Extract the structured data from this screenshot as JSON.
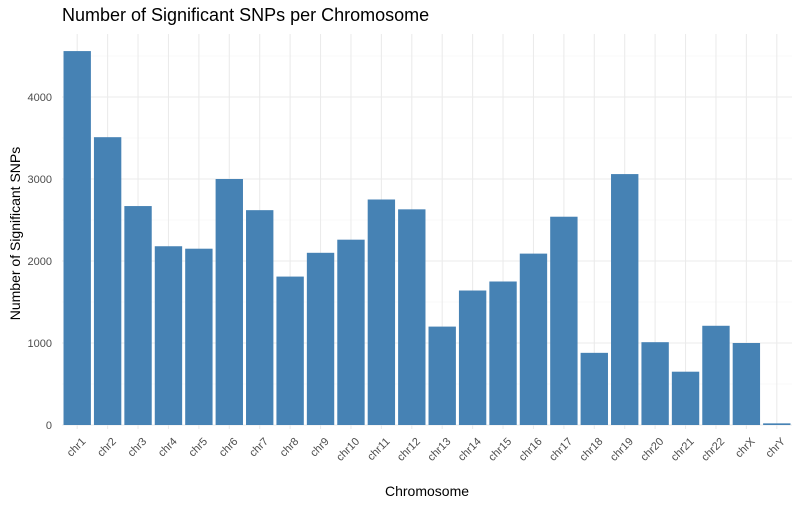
{
  "chart_data": {
    "type": "bar",
    "title": "Number of Significant SNPs per Chromosome",
    "xlabel": "Chromosome",
    "ylabel": "Number of Significant SNPs",
    "categories": [
      "chr1",
      "chr2",
      "chr3",
      "chr4",
      "chr5",
      "chr6",
      "chr7",
      "chr8",
      "chr9",
      "chr10",
      "chr11",
      "chr12",
      "chr13",
      "chr14",
      "chr15",
      "chr16",
      "chr17",
      "chr18",
      "chr19",
      "chr20",
      "chr21",
      "chr22",
      "chrX",
      "chrY"
    ],
    "values": [
      4560,
      3510,
      2670,
      2180,
      2150,
      3000,
      2620,
      1810,
      2100,
      2260,
      2750,
      2630,
      1200,
      1640,
      1750,
      2090,
      2540,
      880,
      3060,
      1010,
      650,
      1210,
      1000,
      20
    ],
    "yticks": [
      0,
      1000,
      2000,
      3000,
      4000
    ],
    "ylim": [
      0,
      4800
    ],
    "grid": true,
    "legend": "none",
    "bar_color": "#4682B4",
    "grid_color": "#EBEBEB",
    "minor_grid_color": "#F3F3F3"
  }
}
